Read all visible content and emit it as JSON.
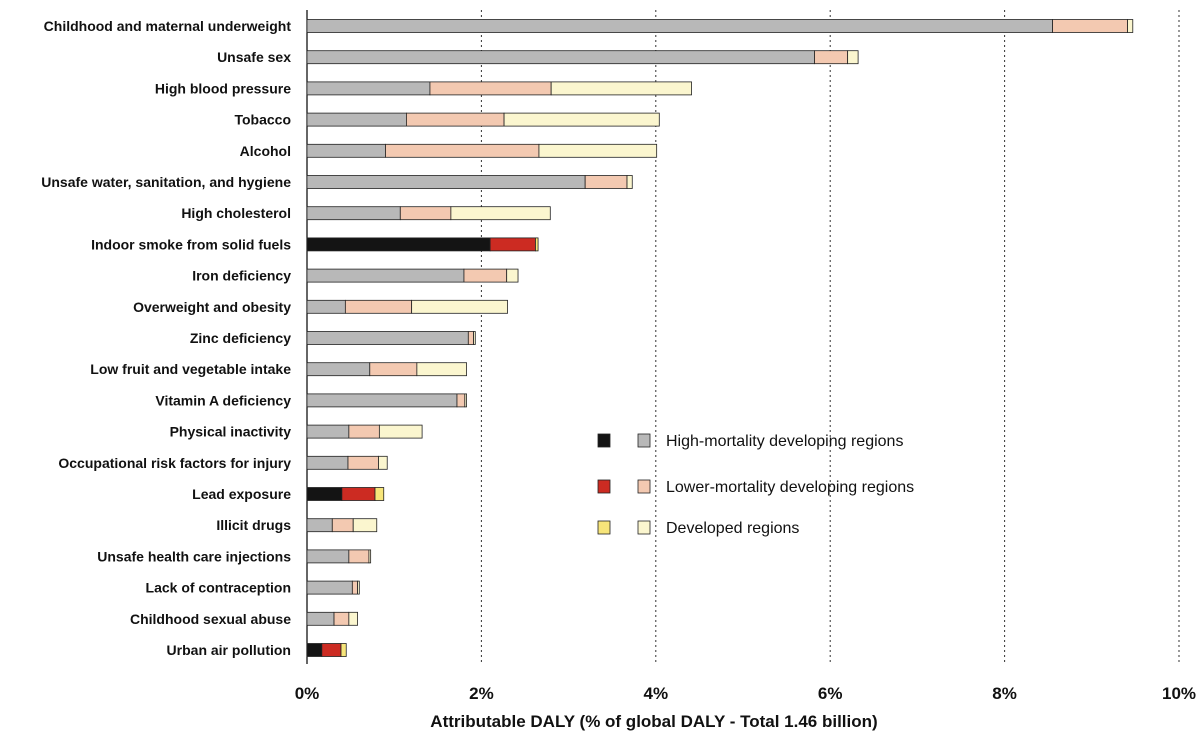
{
  "chart_data": {
    "type": "bar",
    "orientation": "horizontal",
    "stacked": true,
    "xlabel": "Attributable DALY (% of global DALY - Total 1.46 billion)",
    "xlim": [
      0,
      10
    ],
    "x_ticks": [
      "0%",
      "2%",
      "4%",
      "6%",
      "8%",
      "10%"
    ],
    "grid": "vertical dotted",
    "legend_position": "center-right",
    "categories": [
      "Childhood and maternal underweight",
      "Unsafe sex",
      "High blood pressure",
      "Tobacco",
      "Alcohol",
      "Unsafe water, sanitation, and hygiene",
      "High cholesterol",
      "Indoor smoke from solid fuels",
      "Iron deficiency",
      "Overweight and obesity",
      "Zinc deficiency",
      "Low fruit and vegetable intake",
      "Vitamin A deficiency",
      "Physical inactivity",
      "Occupational risk factors for injury",
      "Lead exposure",
      "Illicit drugs",
      "Unsafe health care injections",
      "Lack of contraception",
      "Childhood sexual abuse",
      "Urban air pollution"
    ],
    "series": [
      {
        "name": "High-mortality developing regions",
        "values": [
          8.55,
          5.82,
          1.41,
          1.14,
          0.9,
          3.19,
          1.07,
          2.1,
          1.8,
          0.44,
          1.85,
          0.72,
          1.72,
          0.48,
          0.47,
          0.4,
          0.29,
          0.48,
          0.52,
          0.31,
          0.17
        ]
      },
      {
        "name": "Lower-mortality developing regions",
        "values": [
          0.86,
          0.38,
          1.39,
          1.12,
          1.76,
          0.48,
          0.58,
          0.52,
          0.49,
          0.76,
          0.06,
          0.54,
          0.09,
          0.35,
          0.35,
          0.38,
          0.24,
          0.23,
          0.06,
          0.17,
          0.22
        ]
      },
      {
        "name": "Developed regions",
        "values": [
          0.06,
          0.12,
          1.61,
          1.78,
          1.35,
          0.06,
          1.14,
          0.03,
          0.13,
          1.1,
          0.02,
          0.57,
          0.02,
          0.49,
          0.1,
          0.1,
          0.27,
          0.02,
          0.02,
          0.1,
          0.06
        ]
      }
    ],
    "highlighted_categories": [
      "Indoor smoke from solid fuels",
      "Lead exposure",
      "Urban air pollution"
    ],
    "colors": {
      "normal": [
        "#b8b8b8",
        "#f3c9b1",
        "#fbf6cf"
      ],
      "highlighted": [
        "#141414",
        "#cc2b22",
        "#f7e57a"
      ]
    },
    "legend": [
      {
        "label": "High-mortality developing regions",
        "swatches": [
          "#141414",
          "#b8b8b8"
        ]
      },
      {
        "label": "Lower-mortality developing regions",
        "swatches": [
          "#cc2b22",
          "#f3c9b1"
        ]
      },
      {
        "label": "Developed regions",
        "swatches": [
          "#f7e57a",
          "#fbf6cf"
        ]
      }
    ]
  }
}
